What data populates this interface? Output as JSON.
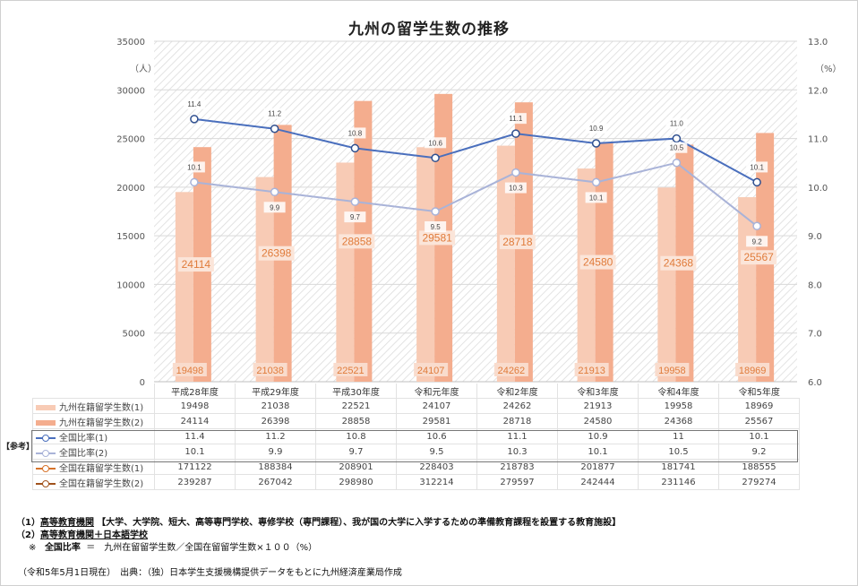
{
  "title": "九州の留学生数の推移",
  "units": {
    "left": "（人）",
    "right": "（%）"
  },
  "ref_label": "【参考】",
  "chart_data": {
    "type": "bar",
    "categories": [
      "平成28年度",
      "平成29年度",
      "平成30年度",
      "令和元年度",
      "令和2年度",
      "令和3年度",
      "令和4年度",
      "令和5年度"
    ],
    "y_left_lim": [
      0,
      35000
    ],
    "y_left_ticks": [
      "35000",
      "30000",
      "25000",
      "20000",
      "15000",
      "10000",
      "5000",
      "0"
    ],
    "y_right_lim": [
      6.0,
      13.0
    ],
    "y_right_ticks": [
      "13.0",
      "12.0",
      "11.0",
      "10.0",
      "9.0",
      "8.0",
      "7.0",
      "6.0"
    ],
    "series": [
      {
        "name": "九州在籍留学生数(1)",
        "type": "bar",
        "axis": "left",
        "color": "#f8cbb5",
        "values": [
          19498,
          21038,
          22521,
          24107,
          24262,
          21913,
          19958,
          18969
        ],
        "labels": [
          "19498",
          "21038",
          "22521",
          "24107",
          "24262",
          "21913",
          "19958",
          "18969"
        ]
      },
      {
        "name": "九州在籍留学生数(2)",
        "type": "bar",
        "axis": "left",
        "color": "#f4ad8e",
        "values": [
          24114,
          26398,
          28858,
          29581,
          28718,
          24580,
          24368,
          25567
        ],
        "labels": [
          "24114",
          "26398",
          "28858",
          "29581",
          "28718",
          "24580",
          "24368",
          "25567"
        ]
      },
      {
        "name": "全国比率(1)",
        "type": "line",
        "axis": "right",
        "color": "#4a6fbd",
        "values": [
          11.4,
          11.2,
          10.8,
          10.6,
          11.1,
          10.9,
          11.0,
          10.1
        ],
        "labels": [
          "11.4",
          "11.2",
          "10.8",
          "10.6",
          "11.1",
          "10.9",
          "11.0",
          "10.1"
        ]
      },
      {
        "name": "全国比率(2)",
        "type": "line",
        "axis": "right",
        "color": "#a9b3d8",
        "values": [
          10.1,
          9.9,
          9.7,
          9.5,
          10.3,
          10.1,
          10.5,
          9.2
        ],
        "labels": [
          "10.1",
          "9.9",
          "9.7",
          "9.5",
          "10.3",
          "10.1",
          "10.5",
          "9.2"
        ]
      },
      {
        "name": "全国在籍留学生数(1)",
        "type": "table",
        "color": "#d7732a",
        "values": [
          171122,
          188384,
          208901,
          228403,
          218783,
          201877,
          181741,
          188555
        ]
      },
      {
        "name": "全国在籍留学生数(2)",
        "type": "table",
        "color": "#a0521c",
        "values": [
          239287,
          267042,
          298980,
          312214,
          279597,
          242444,
          231146,
          279274
        ]
      }
    ]
  },
  "table": {
    "rows": [
      {
        "label": "九州在籍留学生数(1)",
        "marker": "square",
        "color": "#f8cbb5",
        "cells": [
          "19498",
          "21038",
          "22521",
          "24107",
          "24262",
          "21913",
          "19958",
          "18969"
        ]
      },
      {
        "label": "九州在籍留学生数(2)",
        "marker": "square",
        "color": "#f4ad8e",
        "cells": [
          "24114",
          "26398",
          "28858",
          "29581",
          "28718",
          "24580",
          "24368",
          "25567"
        ]
      },
      {
        "label": "全国比率(1)",
        "marker": "line",
        "color": "#4a6fbd",
        "cells": [
          "11.4",
          "11.2",
          "10.8",
          "10.6",
          "11.1",
          "10.9",
          "11",
          "10.1"
        ]
      },
      {
        "label": "全国比率(2)",
        "marker": "line",
        "color": "#a9b3d8",
        "cells": [
          "10.1",
          "9.9",
          "9.7",
          "9.5",
          "10.3",
          "10.1",
          "10.5",
          "9.2"
        ]
      },
      {
        "label": "全国在籍留学生数(1)",
        "marker": "line",
        "color": "#d7732a",
        "cells": [
          "171122",
          "188384",
          "208901",
          "228403",
          "218783",
          "201877",
          "181741",
          "188555"
        ]
      },
      {
        "label": "全国在籍留学生数(2)",
        "marker": "line",
        "color": "#a0521c",
        "cells": [
          "239287",
          "267042",
          "298980",
          "312214",
          "279597",
          "242444",
          "231146",
          "279274"
        ]
      }
    ]
  },
  "notes": {
    "n1_prefix": "（1）",
    "n1_key": "高等教育機関",
    "n1_text": "【大学、大学院、短大、高等専門学校、専修学校（専門課程）、我が国の大学に入学するための準備教育課程を設置する教育施設】",
    "n2_prefix": "（2）",
    "n2_key": "高等教育機関＋日本語学校",
    "n3_prefix": "※",
    "n3_key": "全国比率",
    "n3_text": "＝　九州在留留学生数／全国在留留学生数×１００（%）",
    "source": "（令和5年5月1日現在）　出典：（独）日本学生支援機構提供データをもとに九州経済産業局作成"
  }
}
